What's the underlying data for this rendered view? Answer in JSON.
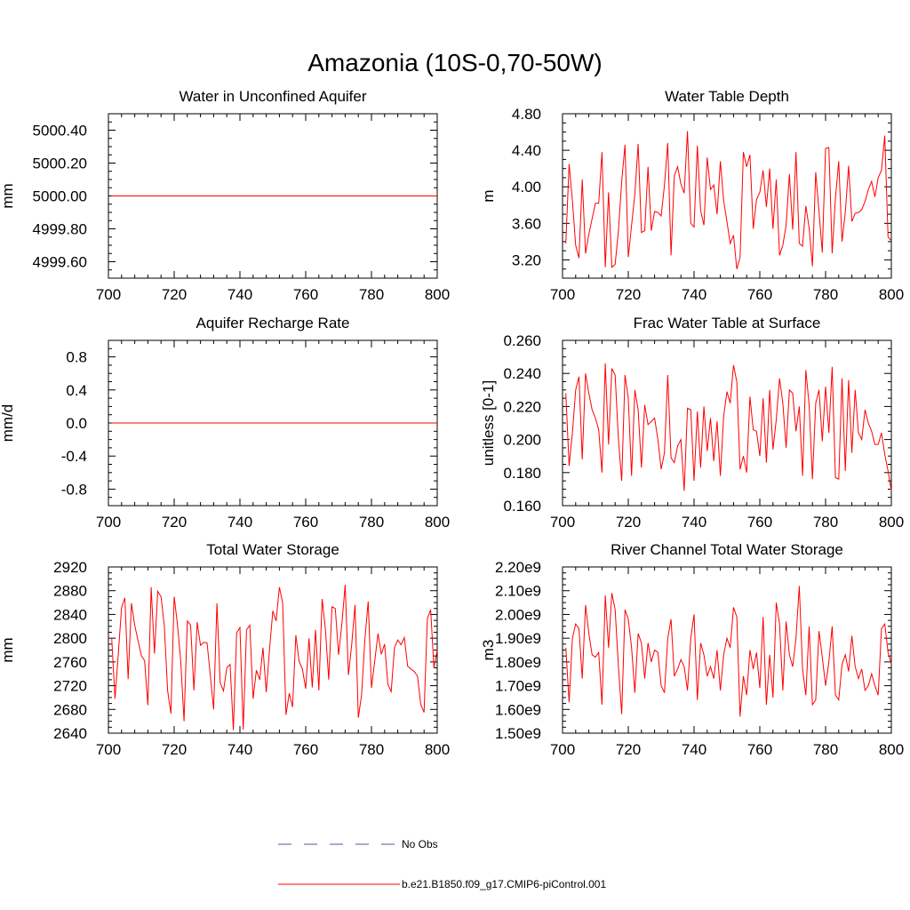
{
  "figure": {
    "title": "Amazonia (10S-0,70-50W)",
    "legend": [
      {
        "label": "No Obs",
        "color": "#4a5a9a",
        "dashed": true
      },
      {
        "label": "b.e21.B1850.f09_g17.CMIP6-piControl.001",
        "color": "#ff0000",
        "dashed": false
      }
    ]
  },
  "chart_data": [
    {
      "type": "line",
      "title": "Water in Unconfined Aquifer",
      "xlabel": "",
      "ylabel": "mm",
      "xlim": [
        700,
        800
      ],
      "ylim": [
        4999.5,
        5000.5
      ],
      "xticks": [
        700,
        720,
        740,
        760,
        780,
        800
      ],
      "yticks": [
        4999.6,
        4999.8,
        5000.0,
        5000.2,
        5000.4
      ],
      "ytick_labels": [
        "4999.60",
        "4999.80",
        "5000.00",
        "5000.20",
        "5000.40"
      ],
      "series": [
        {
          "name": "b.e21.B1850.f09_g17.CMIP6-piControl.001",
          "color": "#ff0000",
          "x_start": 701,
          "x_step": 1,
          "constant": 5000.0,
          "count": 100
        }
      ]
    },
    {
      "type": "line",
      "title": "Water Table Depth",
      "xlabel": "",
      "ylabel": "m",
      "xlim": [
        700,
        800
      ],
      "ylim": [
        3.0,
        4.8
      ],
      "xticks": [
        700,
        720,
        740,
        760,
        780,
        800
      ],
      "yticks": [
        3.2,
        3.6,
        4.0,
        4.4,
        4.8
      ],
      "ytick_labels": [
        "3.20",
        "3.60",
        "4.00",
        "4.40",
        "4.80"
      ],
      "series": [
        {
          "name": "b.e21.B1850.f09_g17.CMIP6-piControl.001",
          "color": "#ff0000",
          "x_start": 701,
          "x_step": 1,
          "values": [
            3.38,
            4.25,
            3.85,
            3.36,
            3.22,
            4.08,
            3.27,
            3.48,
            3.65,
            3.82,
            3.82,
            4.38,
            3.12,
            3.94,
            3.12,
            3.15,
            3.52,
            4.06,
            4.46,
            3.23,
            3.58,
            3.92,
            4.47,
            3.5,
            3.52,
            4.22,
            3.52,
            3.73,
            3.72,
            3.68,
            4.02,
            4.48,
            3.25,
            4.12,
            4.22,
            4.03,
            3.93,
            4.61,
            3.6,
            3.56,
            4.45,
            3.74,
            3.58,
            4.32,
            3.97,
            4.02,
            3.7,
            4.28,
            3.85,
            3.62,
            3.38,
            3.47,
            3.1,
            3.23,
            4.38,
            4.22,
            4.35,
            3.54,
            3.86,
            3.94,
            4.18,
            3.78,
            4.2,
            3.54,
            4.08,
            3.25,
            3.36,
            3.58,
            4.14,
            3.53,
            4.38,
            3.38,
            3.35,
            3.79,
            3.55,
            3.13,
            4.16,
            3.73,
            3.28,
            4.42,
            4.43,
            3.27,
            3.88,
            4.28,
            3.4,
            3.72,
            4.23,
            3.62,
            3.71,
            3.72,
            3.75,
            3.84,
            3.97,
            4.06,
            3.89,
            4.1,
            4.18,
            4.56,
            3.45,
            3.41
          ]
        }
      ]
    },
    {
      "type": "line",
      "title": "Aquifer Recharge Rate",
      "xlabel": "",
      "ylabel": "mm/d",
      "xlim": [
        700,
        800
      ],
      "ylim": [
        -1.0,
        1.0
      ],
      "xticks": [
        700,
        720,
        740,
        760,
        780,
        800
      ],
      "yticks": [
        -0.8,
        -0.4,
        0.0,
        0.4,
        0.8
      ],
      "ytick_labels": [
        "-0.8",
        "-0.4",
        "0.0",
        "0.4",
        "0.8"
      ],
      "series": [
        {
          "name": "b.e21.B1850.f09_g17.CMIP6-piControl.001",
          "color": "#ff0000",
          "x_start": 701,
          "x_step": 1,
          "constant": 0.0,
          "count": 100
        }
      ]
    },
    {
      "type": "line",
      "title": "Frac Water Table at Surface",
      "xlabel": "",
      "ylabel": "unitless [0-1]",
      "xlim": [
        700,
        800
      ],
      "ylim": [
        0.16,
        0.26
      ],
      "xticks": [
        700,
        720,
        740,
        760,
        780,
        800
      ],
      "yticks": [
        0.16,
        0.18,
        0.2,
        0.22,
        0.24,
        0.26
      ],
      "ytick_labels": [
        "0.160",
        "0.180",
        "0.200",
        "0.220",
        "0.240",
        "0.260"
      ],
      "series": [
        {
          "name": "b.e21.B1850.f09_g17.CMIP6-piControl.001",
          "color": "#ff0000",
          "x_start": 701,
          "x_step": 1,
          "values": [
            0.228,
            0.184,
            0.204,
            0.23,
            0.238,
            0.188,
            0.24,
            0.228,
            0.218,
            0.213,
            0.206,
            0.18,
            0.246,
            0.197,
            0.243,
            0.239,
            0.2,
            0.175,
            0.239,
            0.225,
            0.178,
            0.23,
            0.218,
            0.183,
            0.221,
            0.209,
            0.211,
            0.213,
            0.2,
            0.182,
            0.192,
            0.239,
            0.189,
            0.186,
            0.196,
            0.2,
            0.169,
            0.219,
            0.218,
            0.175,
            0.217,
            0.183,
            0.22,
            0.193,
            0.213,
            0.187,
            0.211,
            0.178,
            0.214,
            0.229,
            0.222,
            0.245,
            0.235,
            0.182,
            0.19,
            0.18,
            0.226,
            0.206,
            0.205,
            0.19,
            0.225,
            0.186,
            0.23,
            0.194,
            0.212,
            0.237,
            0.222,
            0.195,
            0.23,
            0.228,
            0.205,
            0.22,
            0.178,
            0.242,
            0.221,
            0.176,
            0.222,
            0.23,
            0.199,
            0.232,
            0.204,
            0.244,
            0.177,
            0.176,
            0.237,
            0.181,
            0.236,
            0.192,
            0.23,
            0.204,
            0.2,
            0.218,
            0.21,
            0.205,
            0.197,
            0.197,
            0.204,
            0.191,
            0.181,
            0.169
          ]
        }
      ]
    },
    {
      "type": "line",
      "title": "Total Water Storage",
      "xlabel": "",
      "ylabel": "mm",
      "xlim": [
        700,
        800
      ],
      "ylim": [
        2640,
        2920
      ],
      "xticks": [
        700,
        720,
        740,
        760,
        780,
        800
      ],
      "yticks": [
        2640,
        2680,
        2720,
        2760,
        2800,
        2840,
        2880,
        2920
      ],
      "ytick_labels": [
        "2640",
        "2680",
        "2720",
        "2760",
        "2800",
        "2840",
        "2880",
        "2920"
      ],
      "series": [
        {
          "name": "b.e21.B1850.f09_g17.CMIP6-piControl.001",
          "color": "#ff0000",
          "x_start": 701,
          "x_step": 1,
          "values": [
            2800,
            2698,
            2773,
            2852,
            2868,
            2731,
            2859,
            2822,
            2796,
            2771,
            2762,
            2687,
            2886,
            2774,
            2879,
            2870,
            2821,
            2712,
            2673,
            2870,
            2823,
            2761,
            2660,
            2829,
            2822,
            2712,
            2827,
            2788,
            2793,
            2792,
            2737,
            2680,
            2859,
            2725,
            2711,
            2750,
            2756,
            2645,
            2809,
            2818,
            2646,
            2814,
            2822,
            2698,
            2746,
            2730,
            2784,
            2709,
            2781,
            2846,
            2829,
            2886,
            2859,
            2671,
            2707,
            2684,
            2805,
            2761,
            2748,
            2715,
            2800,
            2717,
            2814,
            2712,
            2866,
            2815,
            2730,
            2853,
            2850,
            2772,
            2824,
            2890,
            2738,
            2790,
            2856,
            2666,
            2705,
            2798,
            2862,
            2716,
            2762,
            2808,
            2773,
            2790,
            2722,
            2710,
            2784,
            2797,
            2789,
            2801,
            2753,
            2748,
            2744,
            2736,
            2688,
            2675,
            2833,
            2848,
            2750,
            2780
          ]
        }
      ]
    },
    {
      "type": "line",
      "title": "River Channel Total Water Storage",
      "xlabel": "",
      "ylabel": "m3",
      "xlim": [
        700,
        800
      ],
      "ylim": [
        1.5,
        2.2
      ],
      "y_unit_suffix": "e9",
      "xticks": [
        700,
        720,
        740,
        760,
        780,
        800
      ],
      "yticks": [
        1.5,
        1.6,
        1.7,
        1.8,
        1.9,
        2.0,
        2.1,
        2.2
      ],
      "ytick_labels": [
        "1.50e9",
        "1.60e9",
        "1.70e9",
        "1.80e9",
        "1.90e9",
        "2.00e9",
        "2.10e9",
        "2.20e9"
      ],
      "series": [
        {
          "name": "b.e21.B1850.f09_g17.CMIP6-piControl.001",
          "color": "#ff0000",
          "x_start": 701,
          "x_step": 1,
          "values": [
            1.86,
            1.63,
            1.9,
            1.96,
            1.94,
            1.73,
            2.04,
            1.92,
            1.83,
            1.82,
            1.84,
            1.62,
            2.08,
            1.86,
            2.09,
            2.02,
            1.78,
            1.58,
            2.02,
            1.98,
            1.86,
            1.67,
            1.92,
            1.88,
            1.73,
            1.88,
            1.8,
            1.85,
            1.84,
            1.7,
            1.67,
            1.9,
            1.98,
            1.74,
            1.77,
            1.81,
            1.78,
            1.68,
            1.9,
            2.0,
            1.64,
            1.88,
            1.83,
            1.74,
            1.78,
            1.73,
            1.85,
            1.68,
            1.83,
            1.9,
            1.86,
            2.03,
            1.99,
            1.57,
            1.74,
            1.66,
            1.85,
            1.77,
            1.84,
            1.69,
            1.99,
            1.62,
            1.83,
            1.65,
            2.05,
            1.96,
            1.68,
            1.97,
            1.83,
            1.78,
            1.9,
            2.12,
            1.77,
            1.66,
            1.95,
            1.62,
            1.64,
            1.93,
            1.82,
            1.7,
            1.8,
            1.95,
            1.66,
            1.64,
            1.79,
            1.83,
            1.76,
            1.91,
            1.78,
            1.73,
            1.77,
            1.68,
            1.7,
            1.75,
            1.7,
            1.66,
            1.94,
            1.96,
            1.84,
            1.79
          ]
        }
      ]
    }
  ]
}
